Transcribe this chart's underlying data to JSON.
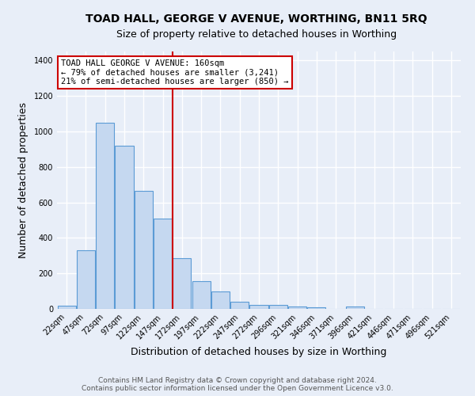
{
  "title": "TOAD HALL, GEORGE V AVENUE, WORTHING, BN11 5RQ",
  "subtitle": "Size of property relative to detached houses in Worthing",
  "xlabel": "Distribution of detached houses by size in Worthing",
  "ylabel": "Number of detached properties",
  "footer1": "Contains HM Land Registry data © Crown copyright and database right 2024.",
  "footer2": "Contains public sector information licensed under the Open Government Licence v3.0.",
  "categories": [
    "22sqm",
    "47sqm",
    "72sqm",
    "97sqm",
    "122sqm",
    "147sqm",
    "172sqm",
    "197sqm",
    "222sqm",
    "247sqm",
    "272sqm",
    "296sqm",
    "321sqm",
    "346sqm",
    "371sqm",
    "396sqm",
    "421sqm",
    "446sqm",
    "471sqm",
    "496sqm",
    "521sqm"
  ],
  "values": [
    18,
    330,
    1050,
    920,
    665,
    510,
    285,
    155,
    100,
    40,
    22,
    22,
    15,
    10,
    0,
    12,
    0,
    0,
    0,
    0,
    0
  ],
  "bar_color": "#c5d8f0",
  "bar_edge_color": "#5b9bd5",
  "vline_x": 5.5,
  "vline_color": "#cc0000",
  "annotation_title": "TOAD HALL GEORGE V AVENUE: 160sqm",
  "annotation_line1": "← 79% of detached houses are smaller (3,241)",
  "annotation_line2": "21% of semi-detached houses are larger (850) →",
  "annotation_box_color": "#ffffff",
  "annotation_box_edge_color": "#cc0000",
  "ylim": [
    0,
    1450
  ],
  "yticks": [
    0,
    200,
    400,
    600,
    800,
    1000,
    1200,
    1400
  ],
  "background_color": "#e8eef8",
  "grid_color": "#ffffff",
  "title_fontsize": 10,
  "subtitle_fontsize": 9,
  "ylabel_fontsize": 9,
  "xlabel_fontsize": 9,
  "tick_fontsize": 7,
  "footer_fontsize": 6.5
}
